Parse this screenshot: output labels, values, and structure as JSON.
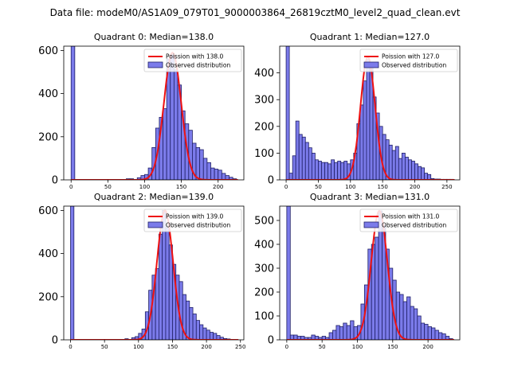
{
  "suptitle": "Data file: modeM0/AS1A09_079T01_9000003864_26819cztM0_level2_quad_clean.evt",
  "colors": {
    "bars": "#7b7bea",
    "bar_edge": "#1f1f66",
    "fit": "#ee1111"
  },
  "chart_data": [
    {
      "type": "bar",
      "title": "Quadrant 0: Median=138.0",
      "legend": [
        "Poission with 138.0",
        "Observed distribution"
      ],
      "legend_position": "top-right",
      "xlim": [
        -10,
        235
      ],
      "ylim": [
        0,
        620
      ],
      "xticks": [
        0,
        50,
        100,
        150,
        200
      ],
      "yticks": [
        0,
        200,
        400,
        600
      ],
      "bin_width": 5,
      "hist": [
        [
          0,
          620
        ],
        [
          75,
          5
        ],
        [
          80,
          5
        ],
        [
          90,
          10
        ],
        [
          95,
          20
        ],
        [
          100,
          25
        ],
        [
          105,
          55
        ],
        [
          110,
          150
        ],
        [
          115,
          240
        ],
        [
          120,
          290
        ],
        [
          125,
          330
        ],
        [
          130,
          560
        ],
        [
          135,
          580
        ],
        [
          140,
          510
        ],
        [
          145,
          440
        ],
        [
          150,
          320
        ],
        [
          155,
          260
        ],
        [
          160,
          230
        ],
        [
          165,
          170
        ],
        [
          170,
          150
        ],
        [
          175,
          140
        ],
        [
          180,
          100
        ],
        [
          185,
          80
        ],
        [
          190,
          55
        ],
        [
          195,
          50
        ],
        [
          200,
          45
        ],
        [
          205,
          30
        ],
        [
          210,
          20
        ],
        [
          215,
          12
        ],
        [
          220,
          5
        ]
      ],
      "fit": {
        "mean": 138.0,
        "peak": 590
      }
    },
    {
      "type": "bar",
      "title": "Quadrant 1: Median=127.0",
      "legend": [
        "Poission with 127.0",
        "Observed distribution"
      ],
      "legend_position": "top-right",
      "xlim": [
        -10,
        270
      ],
      "ylim": [
        0,
        500
      ],
      "xticks": [
        0,
        50,
        100,
        150,
        200,
        250
      ],
      "yticks": [
        0,
        100,
        200,
        300,
        400
      ],
      "bin_width": 5,
      "hist": [
        [
          0,
          500
        ],
        [
          5,
          25
        ],
        [
          10,
          90
        ],
        [
          15,
          220
        ],
        [
          20,
          170
        ],
        [
          25,
          160
        ],
        [
          30,
          140
        ],
        [
          35,
          120
        ],
        [
          40,
          100
        ],
        [
          45,
          75
        ],
        [
          50,
          70
        ],
        [
          55,
          65
        ],
        [
          60,
          65
        ],
        [
          65,
          60
        ],
        [
          70,
          75
        ],
        [
          75,
          65
        ],
        [
          80,
          70
        ],
        [
          85,
          65
        ],
        [
          90,
          70
        ],
        [
          95,
          60
        ],
        [
          100,
          75
        ],
        [
          105,
          100
        ],
        [
          110,
          210
        ],
        [
          115,
          280
        ],
        [
          120,
          370
        ],
        [
          125,
          450
        ],
        [
          130,
          430
        ],
        [
          135,
          310
        ],
        [
          140,
          250
        ],
        [
          145,
          200
        ],
        [
          150,
          170
        ],
        [
          155,
          150
        ],
        [
          160,
          130
        ],
        [
          165,
          110
        ],
        [
          170,
          125
        ],
        [
          175,
          80
        ],
        [
          180,
          100
        ],
        [
          185,
          85
        ],
        [
          190,
          75
        ],
        [
          195,
          70
        ],
        [
          200,
          60
        ],
        [
          205,
          50
        ],
        [
          210,
          45
        ],
        [
          215,
          25
        ],
        [
          220,
          20
        ],
        [
          225,
          5
        ],
        [
          230,
          3
        ],
        [
          235,
          3
        ],
        [
          240,
          2
        ],
        [
          245,
          2
        ],
        [
          250,
          2
        ],
        [
          255,
          2
        ]
      ],
      "fit": {
        "mean": 127.0,
        "peak": 460
      }
    },
    {
      "type": "bar",
      "title": "Quadrant 2: Median=139.0",
      "legend": [
        "Poission with 139.0",
        "Observed distribution"
      ],
      "legend_position": "top-right",
      "xlim": [
        -10,
        255
      ],
      "ylim": [
        0,
        620
      ],
      "xticks": [
        0,
        50,
        100,
        150,
        200,
        250
      ],
      "yticks": [
        0,
        200,
        400,
        600
      ],
      "bin_width": 5,
      "hist": [
        [
          0,
          620
        ],
        [
          80,
          5
        ],
        [
          90,
          10
        ],
        [
          95,
          15
        ],
        [
          100,
          30
        ],
        [
          105,
          50
        ],
        [
          110,
          130
        ],
        [
          115,
          230
        ],
        [
          120,
          300
        ],
        [
          125,
          330
        ],
        [
          130,
          490
        ],
        [
          135,
          600
        ],
        [
          140,
          520
        ],
        [
          145,
          440
        ],
        [
          150,
          350
        ],
        [
          155,
          300
        ],
        [
          160,
          270
        ],
        [
          165,
          210
        ],
        [
          170,
          180
        ],
        [
          175,
          150
        ],
        [
          180,
          120
        ],
        [
          185,
          90
        ],
        [
          190,
          70
        ],
        [
          195,
          55
        ],
        [
          200,
          45
        ],
        [
          205,
          35
        ],
        [
          210,
          30
        ],
        [
          215,
          20
        ],
        [
          220,
          12
        ],
        [
          225,
          6
        ],
        [
          230,
          4
        ],
        [
          235,
          2
        ]
      ],
      "fit": {
        "mean": 139.0,
        "peak": 600
      }
    },
    {
      "type": "bar",
      "title": "Quadrant 3: Median=131.0",
      "legend": [
        "Poission with 131.0",
        "Observed distribution"
      ],
      "legend_position": "top-right",
      "xlim": [
        -10,
        245
      ],
      "ylim": [
        0,
        560
      ],
      "xticks": [
        0,
        50,
        100,
        150,
        200
      ],
      "yticks": [
        0,
        100,
        200,
        300,
        400,
        500
      ],
      "bin_width": 5,
      "hist": [
        [
          0,
          560
        ],
        [
          5,
          20
        ],
        [
          10,
          20
        ],
        [
          15,
          15
        ],
        [
          20,
          15
        ],
        [
          25,
          10
        ],
        [
          30,
          10
        ],
        [
          35,
          20
        ],
        [
          40,
          15
        ],
        [
          45,
          10
        ],
        [
          50,
          15
        ],
        [
          55,
          10
        ],
        [
          60,
          30
        ],
        [
          65,
          40
        ],
        [
          70,
          60
        ],
        [
          75,
          55
        ],
        [
          80,
          70
        ],
        [
          85,
          60
        ],
        [
          90,
          80
        ],
        [
          95,
          55
        ],
        [
          100,
          60
        ],
        [
          105,
          150
        ],
        [
          110,
          230
        ],
        [
          115,
          380
        ],
        [
          120,
          400
        ],
        [
          125,
          430
        ],
        [
          130,
          540
        ],
        [
          135,
          480
        ],
        [
          140,
          380
        ],
        [
          145,
          300
        ],
        [
          150,
          250
        ],
        [
          155,
          200
        ],
        [
          160,
          190
        ],
        [
          165,
          160
        ],
        [
          170,
          180
        ],
        [
          175,
          140
        ],
        [
          180,
          130
        ],
        [
          185,
          100
        ],
        [
          190,
          70
        ],
        [
          195,
          65
        ],
        [
          200,
          55
        ],
        [
          205,
          50
        ],
        [
          210,
          40
        ],
        [
          215,
          30
        ],
        [
          220,
          25
        ],
        [
          225,
          15
        ],
        [
          230,
          5
        ]
      ],
      "fit": {
        "mean": 131.0,
        "peak": 540
      }
    }
  ]
}
